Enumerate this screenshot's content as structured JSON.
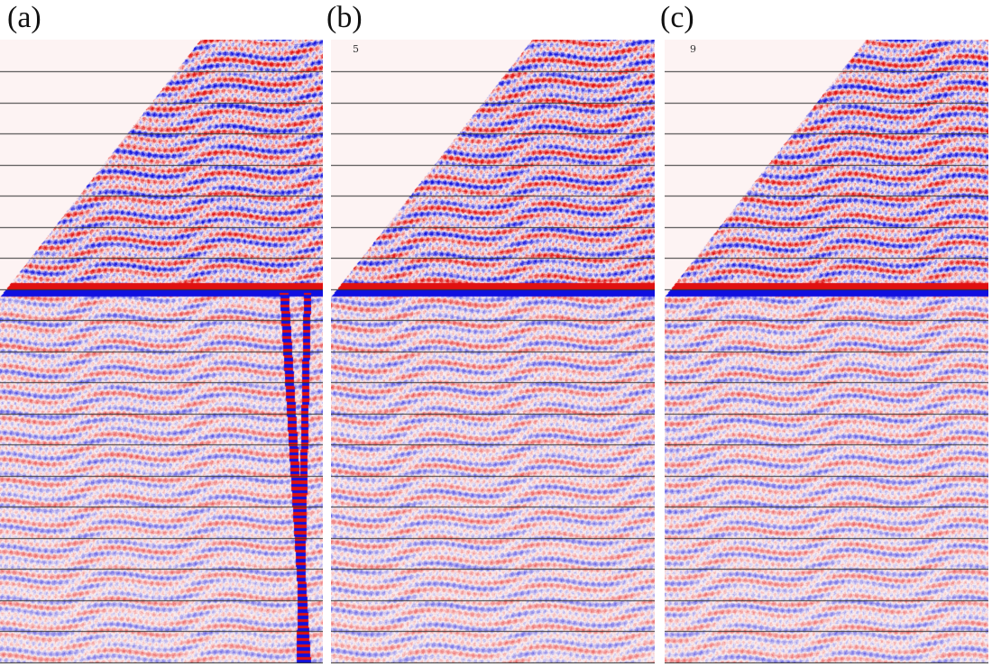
{
  "figure": {
    "panels": [
      {
        "label": "(a)",
        "seismic": "raw-gather-with-noise",
        "has_vertical_noise": true,
        "marker": ""
      },
      {
        "label": "(b)",
        "seismic": "partially-denoised-gather",
        "has_vertical_noise": false,
        "marker": "5"
      },
      {
        "label": "(c)",
        "seismic": "denoised-gather",
        "has_vertical_noise": false,
        "marker": "9"
      }
    ],
    "colors": {
      "positive": "#e01010",
      "negative": "#1010e0",
      "background": "#fdf3f3",
      "timing_line": "#333333"
    }
  }
}
